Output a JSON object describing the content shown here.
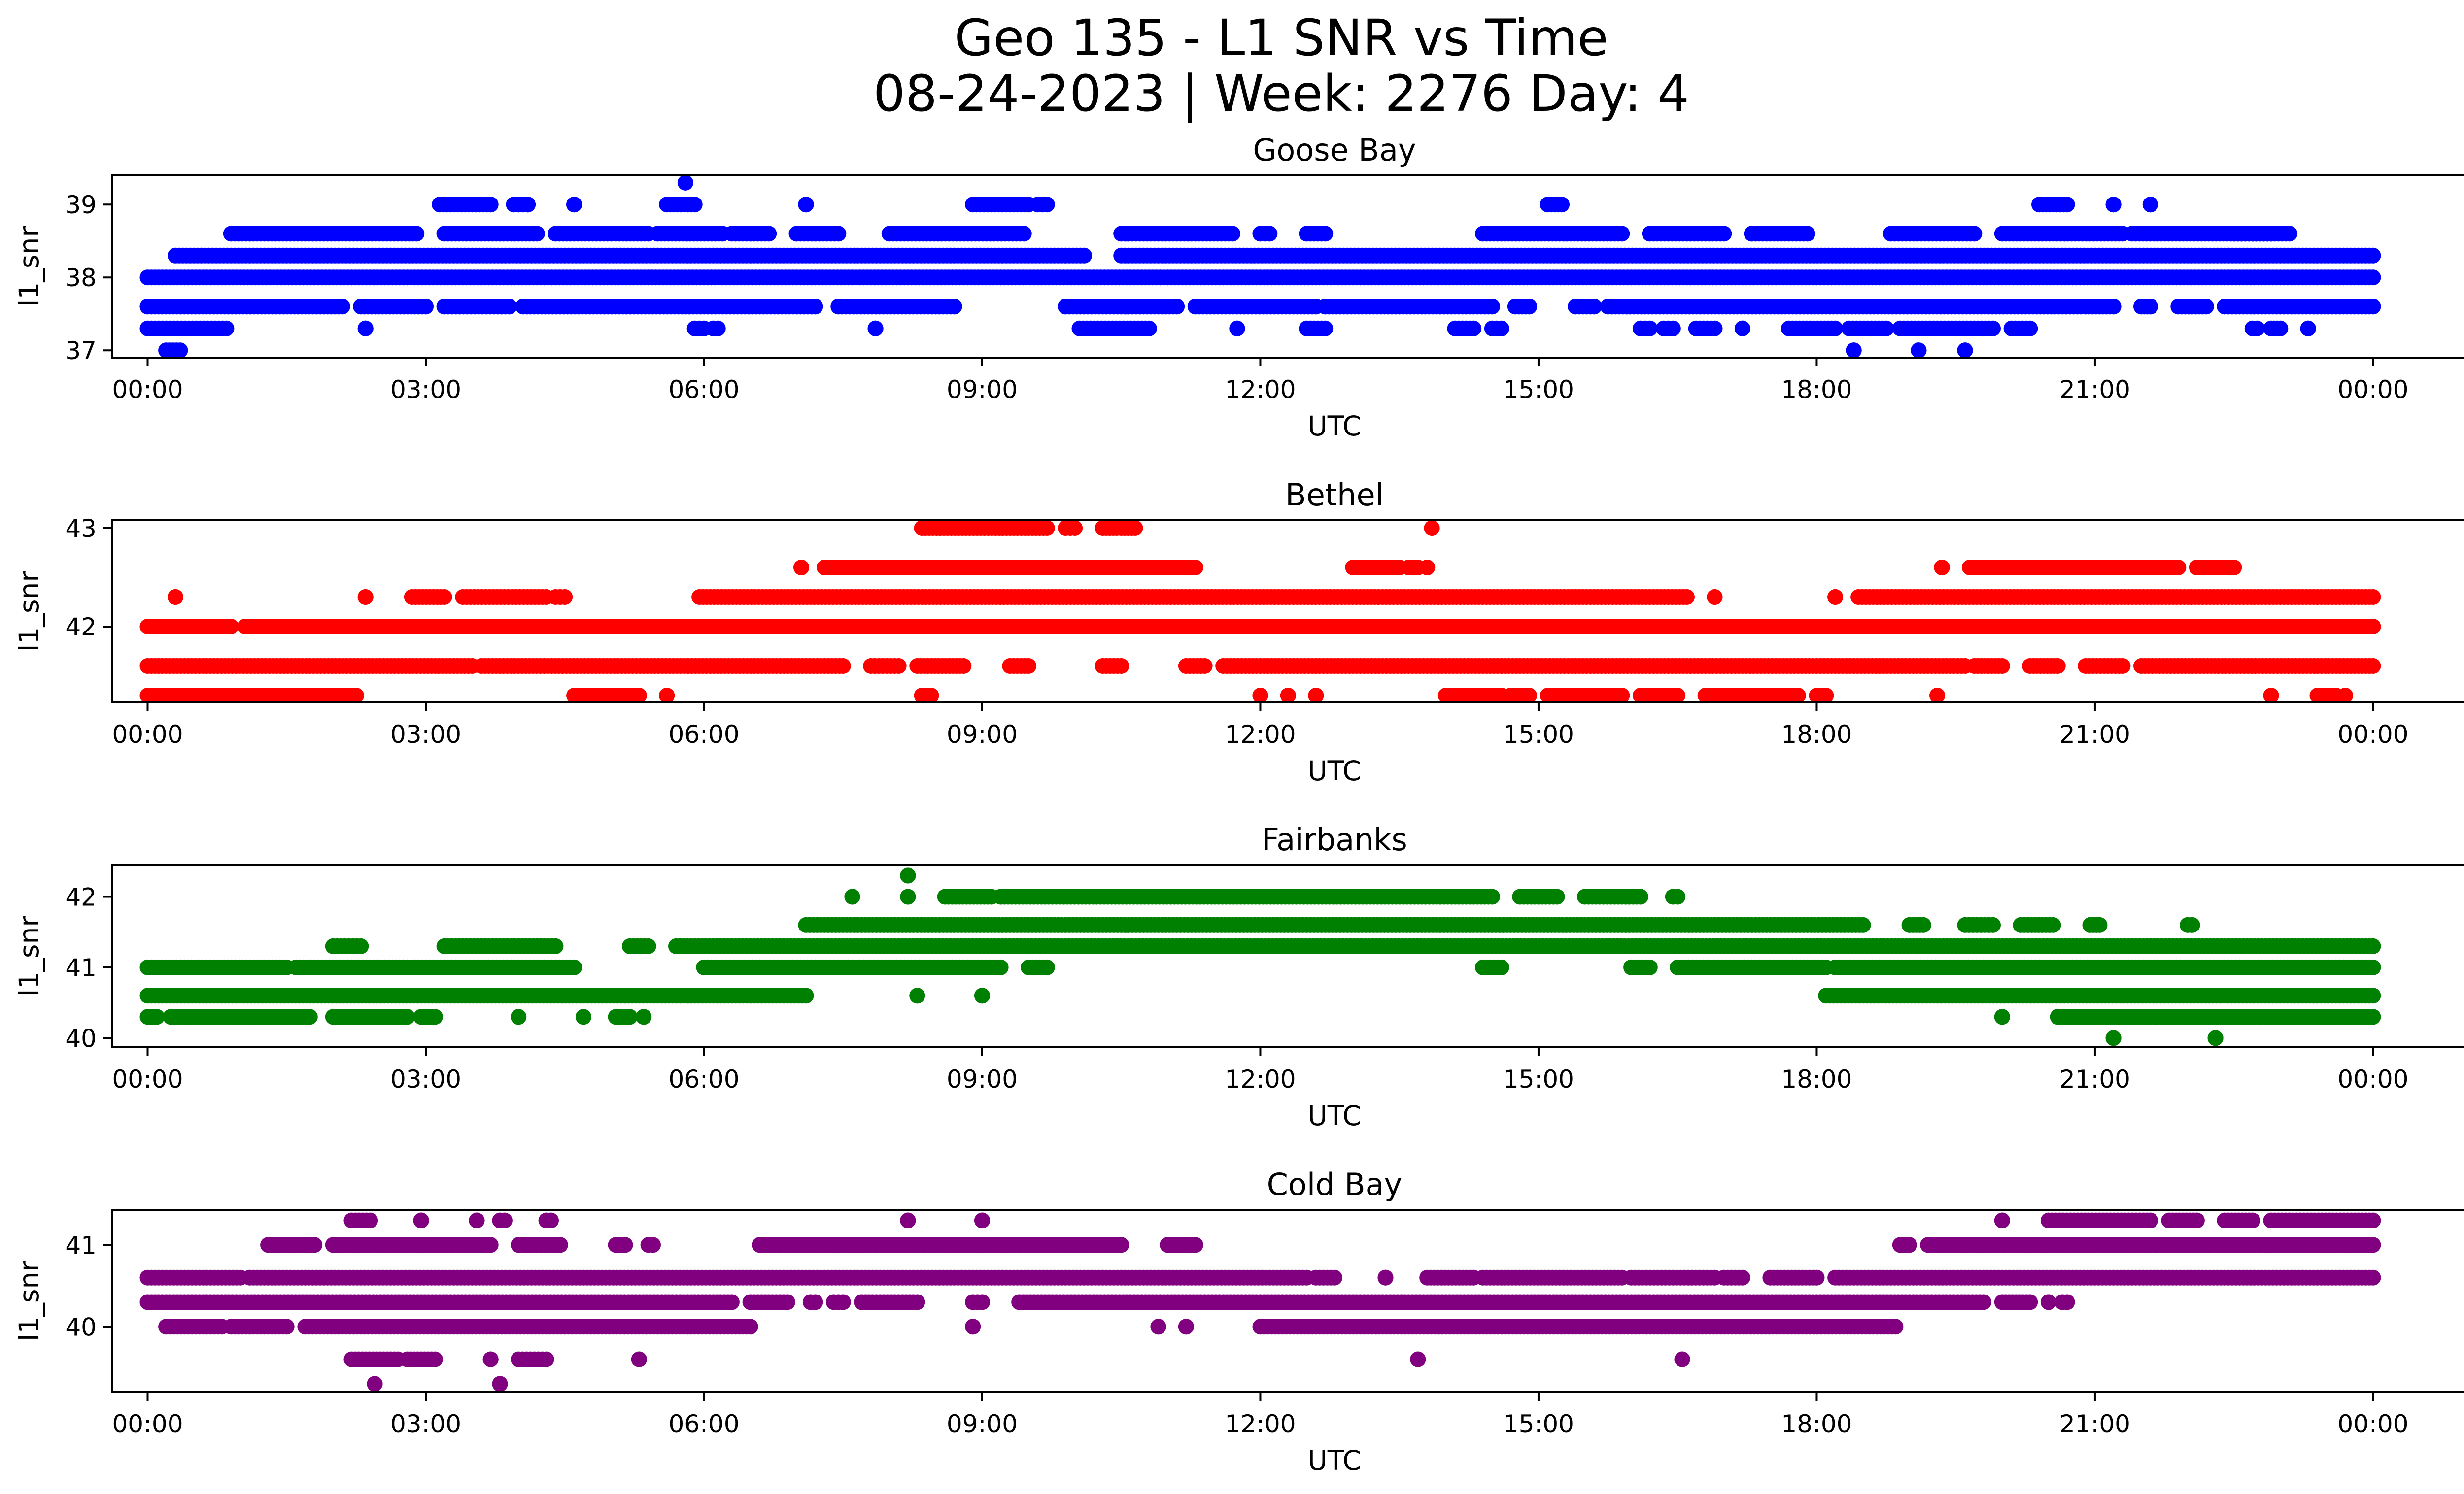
{
  "figure": {
    "title_line1": "Geo 135 - L1 SNR vs Time",
    "title_line2": "08-24-2023 | Week: 2276 Day: 4"
  },
  "chart_data": [
    {
      "type": "scatter",
      "title": "Goose Bay",
      "xlabel": "UTC",
      "ylabel": "l1_snr",
      "color": "#0000ff",
      "xlim_hours": [
        -0.38,
        25.98
      ],
      "ylim": [
        36.9,
        39.4
      ],
      "x_ticks": [
        "00:00",
        "03:00",
        "06:00",
        "09:00",
        "12:00",
        "15:00",
        "18:00",
        "21:00",
        "00:00"
      ],
      "y_ticks": [
        37,
        38,
        39
      ],
      "levels": [
        {
          "y": 37.0,
          "segments": [
            [
              0.2,
              0.35
            ],
            [
              18.4,
              18.4
            ],
            [
              19.1,
              19.1
            ],
            [
              19.6,
              19.6
            ]
          ]
        },
        {
          "y": 37.3,
          "segments": [
            [
              0.0,
              0.85
            ],
            [
              2.35,
              2.35
            ],
            [
              5.9,
              6.0
            ],
            [
              6.1,
              6.15
            ],
            [
              7.85,
              7.85
            ],
            [
              10.05,
              10.8
            ],
            [
              11.75,
              11.75
            ],
            [
              12.5,
              12.7
            ],
            [
              14.1,
              14.3
            ],
            [
              14.5,
              14.6
            ],
            [
              16.1,
              16.2
            ],
            [
              16.35,
              16.45
            ],
            [
              16.7,
              16.9
            ],
            [
              17.2,
              17.2
            ],
            [
              17.7,
              18.2
            ],
            [
              18.35,
              18.75
            ],
            [
              18.9,
              19.9
            ],
            [
              20.1,
              20.3
            ],
            [
              22.7,
              22.75
            ],
            [
              22.9,
              23.0
            ],
            [
              23.3,
              23.3
            ]
          ]
        },
        {
          "y": 37.6,
          "segments": [
            [
              0.0,
              2.1
            ],
            [
              2.3,
              3.0
            ],
            [
              3.2,
              3.9
            ],
            [
              4.05,
              7.2
            ],
            [
              7.45,
              8.7
            ],
            [
              9.9,
              11.1
            ],
            [
              11.3,
              12.6
            ],
            [
              12.7,
              14.5
            ],
            [
              14.75,
              14.9
            ],
            [
              15.4,
              15.6
            ],
            [
              15.75,
              20.85
            ],
            [
              20.9,
              21.2
            ],
            [
              21.5,
              21.6
            ],
            [
              21.9,
              22.2
            ],
            [
              22.4,
              24.0
            ]
          ]
        },
        {
          "y": 38.0,
          "segments": [
            [
              0.0,
              24.0
            ]
          ]
        },
        {
          "y": 38.3,
          "segments": [
            [
              0.3,
              10.1
            ],
            [
              10.5,
              24.0
            ]
          ]
        },
        {
          "y": 38.6,
          "segments": [
            [
              0.9,
              2.9
            ],
            [
              3.2,
              4.2
            ],
            [
              4.4,
              5.0
            ],
            [
              5.05,
              5.4
            ],
            [
              5.5,
              6.2
            ],
            [
              6.3,
              6.7
            ],
            [
              7.0,
              7.45
            ],
            [
              8.0,
              9.45
            ],
            [
              10.5,
              11.7
            ],
            [
              12.0,
              12.1
            ],
            [
              12.5,
              12.7
            ],
            [
              14.4,
              15.9
            ],
            [
              16.2,
              17.0
            ],
            [
              17.3,
              17.9
            ],
            [
              18.8,
              19.7
            ],
            [
              20.0,
              21.3
            ],
            [
              21.4,
              22.9
            ],
            [
              22.5,
              23.1
            ]
          ]
        },
        {
          "y": 39.0,
          "segments": [
            [
              3.15,
              3.7
            ],
            [
              3.95,
              4.0
            ],
            [
              4.0,
              4.1
            ],
            [
              4.1,
              4.1
            ],
            [
              4.6,
              4.6
            ],
            [
              5.6,
              5.9
            ],
            [
              7.1,
              7.1
            ],
            [
              8.9,
              9.5
            ],
            [
              9.6,
              9.7
            ],
            [
              15.1,
              15.25
            ],
            [
              20.4,
              20.7
            ],
            [
              21.2,
              21.2
            ],
            [
              21.6,
              21.6
            ]
          ]
        },
        {
          "y": 39.3,
          "segments": [
            [
              5.8,
              5.8
            ]
          ]
        }
      ]
    },
    {
      "type": "scatter",
      "title": "Bethel",
      "xlabel": "UTC",
      "ylabel": "l1_snr",
      "color": "#ff0000",
      "xlim_hours": [
        -0.38,
        25.98
      ],
      "ylim": [
        41.23,
        43.08
      ],
      "x_ticks": [
        "00:00",
        "03:00",
        "06:00",
        "09:00",
        "12:00",
        "15:00",
        "18:00",
        "21:00",
        "00:00"
      ],
      "y_ticks": [
        42,
        43
      ],
      "levels": [
        {
          "y": 41.3,
          "segments": [
            [
              0.0,
              2.25
            ],
            [
              4.6,
              5.3
            ],
            [
              5.6,
              5.6
            ],
            [
              8.35,
              8.45
            ],
            [
              12.0,
              12.0
            ],
            [
              12.3,
              12.3
            ],
            [
              12.6,
              12.6
            ],
            [
              14.0,
              14.6
            ],
            [
              14.7,
              14.9
            ],
            [
              15.1,
              15.9
            ],
            [
              16.1,
              16.5
            ],
            [
              16.8,
              17.8
            ],
            [
              18.0,
              18.1
            ],
            [
              19.3,
              19.3
            ],
            [
              22.9,
              22.9
            ],
            [
              23.4,
              23.6
            ],
            [
              23.7,
              23.7
            ]
          ]
        },
        {
          "y": 41.6,
          "segments": [
            [
              0.0,
              3.5
            ],
            [
              3.6,
              7.5
            ],
            [
              7.8,
              8.1
            ],
            [
              8.3,
              8.8
            ],
            [
              9.3,
              9.5
            ],
            [
              10.3,
              10.5
            ],
            [
              11.2,
              11.4
            ],
            [
              11.6,
              19.6
            ],
            [
              19.7,
              20.0
            ],
            [
              20.3,
              20.6
            ],
            [
              20.9,
              21.3
            ],
            [
              21.5,
              24.0
            ]
          ]
        },
        {
          "y": 42.0,
          "segments": [
            [
              0.0,
              0.9
            ],
            [
              1.05,
              24.0
            ]
          ]
        },
        {
          "y": 42.3,
          "segments": [
            [
              0.3,
              0.3
            ],
            [
              2.35,
              2.35
            ],
            [
              2.85,
              3.2
            ],
            [
              3.4,
              4.3
            ],
            [
              4.4,
              4.5
            ],
            [
              5.95,
              16.6
            ],
            [
              16.9,
              16.9
            ],
            [
              18.2,
              18.2
            ],
            [
              18.45,
              24.0
            ]
          ]
        },
        {
          "y": 42.6,
          "segments": [
            [
              7.05,
              7.05
            ],
            [
              7.3,
              11.3
            ],
            [
              13.0,
              13.5
            ],
            [
              13.6,
              13.7
            ],
            [
              13.8,
              13.8
            ],
            [
              19.35,
              19.35
            ],
            [
              19.65,
              21.9
            ],
            [
              22.1,
              22.4
            ],
            [
              22.35,
              22.5
            ]
          ]
        },
        {
          "y": 43.0,
          "segments": [
            [
              8.35,
              9.7
            ],
            [
              9.9,
              10.0
            ],
            [
              10.3,
              10.45
            ],
            [
              10.5,
              10.65
            ],
            [
              13.85,
              13.85
            ]
          ]
        }
      ]
    },
    {
      "type": "scatter",
      "title": "Fairbanks",
      "xlabel": "UTC",
      "ylabel": "l1_snr",
      "color": "#008000",
      "xlim_hours": [
        -0.38,
        25.98
      ],
      "ylim": [
        39.87,
        42.45
      ],
      "x_ticks": [
        "00:00",
        "03:00",
        "06:00",
        "09:00",
        "12:00",
        "15:00",
        "18:00",
        "21:00",
        "00:00"
      ],
      "y_ticks": [
        40,
        41,
        42
      ],
      "levels": [
        {
          "y": 40.0,
          "segments": [
            [
              21.2,
              21.2
            ],
            [
              22.3,
              22.3
            ]
          ]
        },
        {
          "y": 40.3,
          "segments": [
            [
              0.0,
              0.1
            ],
            [
              0.25,
              1.75
            ],
            [
              2.0,
              2.8
            ],
            [
              2.95,
              3.1
            ],
            [
              4.0,
              4.0
            ],
            [
              4.7,
              4.7
            ],
            [
              5.05,
              5.2
            ],
            [
              5.35,
              5.35
            ],
            [
              20.0,
              20.0
            ],
            [
              20.6,
              24.0
            ]
          ]
        },
        {
          "y": 40.6,
          "segments": [
            [
              0.0,
              7.1
            ],
            [
              8.3,
              8.3
            ],
            [
              9.0,
              9.0
            ],
            [
              18.1,
              24.0
            ]
          ]
        },
        {
          "y": 41.0,
          "segments": [
            [
              0.0,
              1.5
            ],
            [
              1.6,
              4.6
            ],
            [
              6.0,
              9.2
            ],
            [
              9.5,
              9.7
            ],
            [
              14.4,
              14.6
            ],
            [
              16.0,
              16.2
            ],
            [
              16.5,
              18.1
            ],
            [
              18.2,
              24.0
            ]
          ]
        },
        {
          "y": 41.3,
          "segments": [
            [
              2.0,
              2.3
            ],
            [
              3.2,
              4.4
            ],
            [
              5.2,
              5.4
            ],
            [
              5.7,
              24.0
            ]
          ]
        },
        {
          "y": 41.6,
          "segments": [
            [
              7.1,
              18.5
            ],
            [
              19.0,
              19.15
            ],
            [
              19.6,
              19.9
            ],
            [
              20.2,
              20.55
            ],
            [
              20.95,
              21.05
            ],
            [
              22.0,
              22.05
            ]
          ]
        },
        {
          "y": 42.0,
          "segments": [
            [
              7.6,
              7.6
            ],
            [
              8.2,
              8.2
            ],
            [
              8.6,
              9.1
            ],
            [
              9.2,
              14.5
            ],
            [
              14.8,
              15.2
            ],
            [
              15.5,
              16.1
            ],
            [
              16.45,
              16.5
            ]
          ]
        },
        {
          "y": 42.3,
          "segments": [
            [
              8.2,
              8.2
            ]
          ]
        }
      ]
    },
    {
      "type": "scatter",
      "title": "Cold Bay",
      "xlabel": "UTC",
      "ylabel": "l1_snr",
      "color": "#800080",
      "xlim_hours": [
        -0.38,
        25.98
      ],
      "ylim": [
        39.2,
        41.43
      ],
      "x_ticks": [
        "00:00",
        "03:00",
        "06:00",
        "09:00",
        "12:00",
        "15:00",
        "18:00",
        "21:00",
        "00:00"
      ],
      "y_ticks": [
        40,
        41
      ],
      "levels": [
        {
          "y": 39.3,
          "segments": [
            [
              2.45,
              2.45
            ],
            [
              3.8,
              3.8
            ]
          ]
        },
        {
          "y": 39.6,
          "segments": [
            [
              2.2,
              2.7
            ],
            [
              2.8,
              3.1
            ],
            [
              3.7,
              3.7
            ],
            [
              4.0,
              4.3
            ],
            [
              5.3,
              5.3
            ],
            [
              13.7,
              13.7
            ],
            [
              16.55,
              16.55
            ]
          ]
        },
        {
          "y": 40.0,
          "segments": [
            [
              0.2,
              0.8
            ],
            [
              0.9,
              1.5
            ],
            [
              1.7,
              6.5
            ],
            [
              8.9,
              8.9
            ],
            [
              10.9,
              10.9
            ],
            [
              11.2,
              11.2
            ],
            [
              12.0,
              18.85
            ]
          ]
        },
        {
          "y": 40.3,
          "segments": [
            [
              0.0,
              6.3
            ],
            [
              6.5,
              6.9
            ],
            [
              7.15,
              7.2
            ],
            [
              7.4,
              7.5
            ],
            [
              7.7,
              8.3
            ],
            [
              8.9,
              9.0
            ],
            [
              9.4,
              19.8
            ],
            [
              20.0,
              20.3
            ],
            [
              20.5,
              20.5
            ],
            [
              20.65,
              20.7
            ]
          ]
        },
        {
          "y": 40.6,
          "segments": [
            [
              0.0,
              1.0
            ],
            [
              1.1,
              12.5
            ],
            [
              12.6,
              12.8
            ],
            [
              13.35,
              13.35
            ],
            [
              13.8,
              14.3
            ],
            [
              14.4,
              15.9
            ],
            [
              16.0,
              16.9
            ],
            [
              17.0,
              17.2
            ],
            [
              17.5,
              18.0
            ],
            [
              18.2,
              24.0
            ]
          ]
        },
        {
          "y": 41.0,
          "segments": [
            [
              1.3,
              1.8
            ],
            [
              2.0,
              3.7
            ],
            [
              4.0,
              4.45
            ],
            [
              5.05,
              5.15
            ],
            [
              5.4,
              5.45
            ],
            [
              6.6,
              10.5
            ],
            [
              11.0,
              11.3
            ],
            [
              18.9,
              19.0
            ],
            [
              19.2,
              24.0
            ]
          ]
        },
        {
          "y": 41.3,
          "segments": [
            [
              2.2,
              2.4
            ],
            [
              2.95,
              2.95
            ],
            [
              3.55,
              3.55
            ],
            [
              3.8,
              3.85
            ],
            [
              4.3,
              4.35
            ],
            [
              8.2,
              8.2
            ],
            [
              9.0,
              9.0
            ],
            [
              20.0,
              20.0
            ],
            [
              20.5,
              21.6
            ],
            [
              21.8,
              22.1
            ],
            [
              22.4,
              22.7
            ],
            [
              22.9,
              24.0
            ]
          ]
        }
      ]
    }
  ]
}
